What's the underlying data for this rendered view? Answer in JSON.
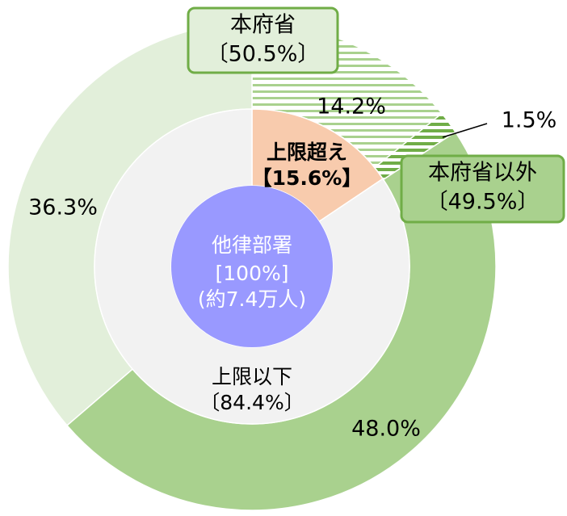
{
  "chart_data": {
    "type": "nested-donut",
    "center": {
      "lines": [
        "他律部署",
        "[100%]",
        "(約7.4万人)"
      ],
      "color": "#9999ff"
    },
    "inner": {
      "categories": [
        "上限超え",
        "上限以下"
      ],
      "values": [
        15.6,
        84.4
      ],
      "value_labels": [
        "【15.6%】",
        "〔84.4%〕"
      ],
      "colors": [
        "#f8cbad",
        "#f2f2f2"
      ]
    },
    "outer": {
      "values": [
        14.2,
        1.5,
        48.0,
        36.3
      ],
      "value_labels": [
        "14.2%",
        "1.5%",
        "48.0%",
        "36.3%"
      ],
      "colors": [
        "#e2efda",
        "#a9d18e",
        "#a9d18e",
        "#e2efda"
      ],
      "hatch": [
        true,
        true,
        false,
        false
      ]
    },
    "groups": [
      {
        "label": "本府省",
        "value": 50.5,
        "value_label": "〔50.5%〕",
        "color": "#e2efda"
      },
      {
        "label": "本府省以外",
        "value": 49.5,
        "value_label": "〔49.5%〕",
        "color": "#a9d18e"
      }
    ]
  }
}
